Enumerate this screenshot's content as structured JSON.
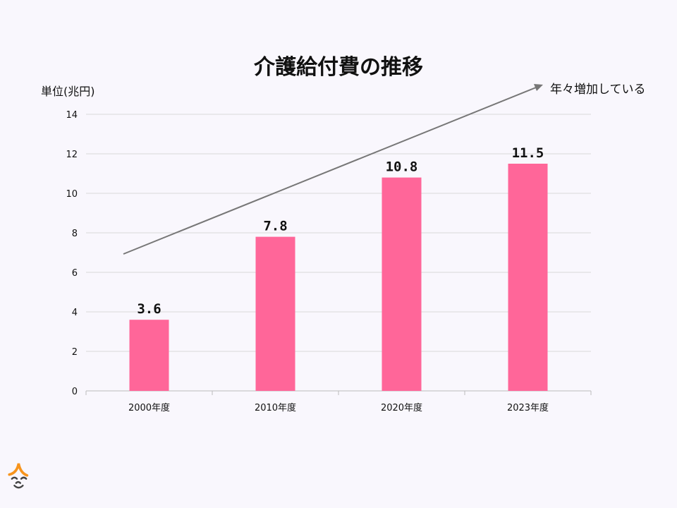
{
  "chart_data": {
    "type": "bar",
    "title": "介護給付費の推移",
    "ylabel": "単位(兆円)",
    "categories": [
      "2000年度",
      "2010年度",
      "2020年度",
      "2023年度"
    ],
    "values": [
      3.6,
      7.8,
      10.8,
      11.5
    ],
    "data_labels": [
      "3.6",
      "7.8",
      "10.8",
      "11.5"
    ],
    "ylim": [
      0,
      14
    ],
    "yticks": [
      0,
      2,
      4,
      6,
      8,
      10,
      12,
      14
    ],
    "grid": true,
    "bar_color": "#ff6699",
    "annotation": {
      "text": "年々増加している",
      "type": "arrow",
      "color": "#777777"
    }
  },
  "logo": {
    "name": "smiling-face-logo",
    "color": "#f7941d"
  }
}
